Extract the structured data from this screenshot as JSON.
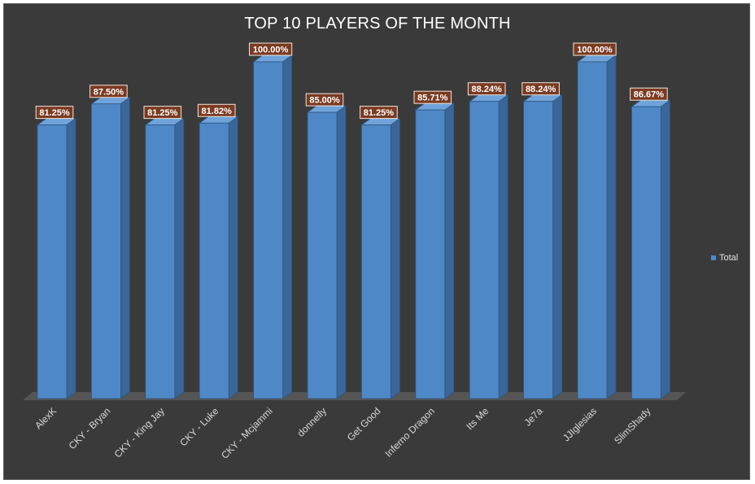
{
  "chart_data": {
    "type": "bar",
    "title": "TOP 10 PLAYERS OF THE MONTH",
    "categories": [
      "AlexK",
      "CKY - Bryan",
      "CKY - King Jay",
      "CKY - Luke",
      "CKY - Mcjammi",
      "donnelly",
      "Get Good",
      "Inferno Dragon",
      "Its Me",
      "Je7a",
      "JJIglesias",
      "SlimShady"
    ],
    "series": [
      {
        "name": "Total",
        "values": [
          81.25,
          87.5,
          81.25,
          81.82,
          100.0,
          85.0,
          81.25,
          85.71,
          88.24,
          88.24,
          100.0,
          86.67
        ],
        "labels": [
          "81.25%",
          "87.50%",
          "81.25%",
          "81.82%",
          "100.00%",
          "85.00%",
          "81.25%",
          "85.71%",
          "88.24%",
          "88.24%",
          "100.00%",
          "86.67%"
        ]
      }
    ],
    "ylim": [
      0,
      100
    ],
    "grid": false,
    "legend_position": "right",
    "colors": {
      "background": "#3a3a3a",
      "bar_front": "#4f88c6",
      "bar_side": "#3a6699",
      "bar_top": "#6fa3da",
      "floor": "#555555",
      "label_bg": "#7a3b22",
      "label_border": "#f2e6dc",
      "text": "#ffffff",
      "axis_text": "#d9d9d9"
    }
  }
}
